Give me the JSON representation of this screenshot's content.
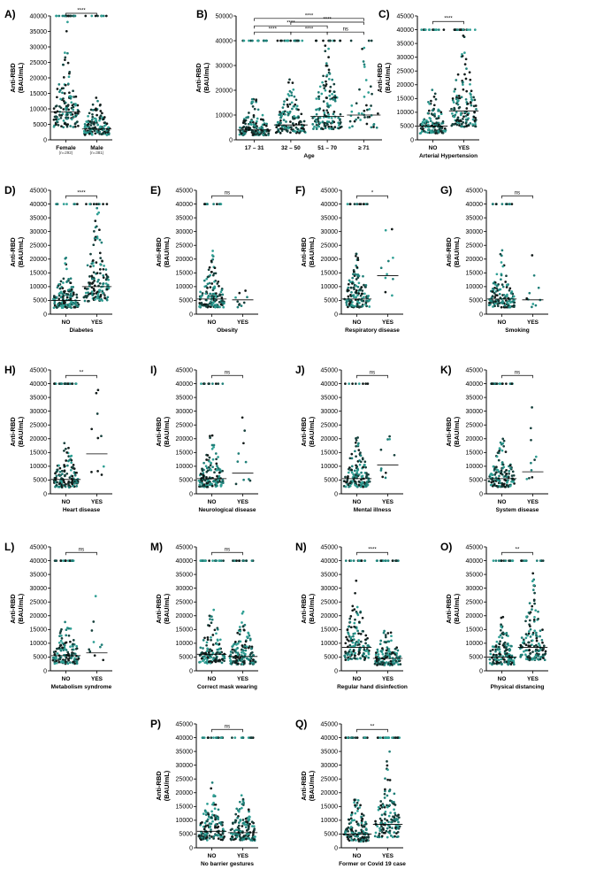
{
  "figure": {
    "y_axis_title_line1": "Anti-RBD",
    "y_axis_title_line2": "(BAU/mL)"
  },
  "colors": {
    "dot_dark": "#16403c",
    "dot_teal": "#1f7f78",
    "dot_light": "#2f9f94",
    "dot_black": "#111a19",
    "axis": "#000000"
  },
  "chart_data": [
    {
      "id": "A",
      "letter": "A)",
      "type": "scatter",
      "title": "",
      "xlabel": "",
      "ylabel": "Anti-RBD (BAU/mL)",
      "ylim": [
        0,
        40000
      ],
      "yticks": [
        0,
        5000,
        10000,
        15000,
        20000,
        25000,
        30000,
        35000,
        40000
      ],
      "categories": [
        "Female",
        "Male"
      ],
      "sublabels": [
        "(n=292)",
        "(n=381)"
      ],
      "medians": [
        9000,
        3500
      ],
      "comparisons": [
        {
          "from": 0,
          "to": 1,
          "label": "****"
        }
      ]
    },
    {
      "id": "B",
      "letter": "B)",
      "type": "scatter",
      "title": "",
      "xlabel": "Age",
      "ylabel": "Anti-RBD (BAU/mL)",
      "ylim": [
        0,
        50000
      ],
      "yticks": [
        0,
        10000,
        20000,
        30000,
        40000,
        50000
      ],
      "categories": [
        "17 – 31",
        "32 – 50",
        "51 – 70",
        "≥ 71"
      ],
      "medians": [
        4000,
        6000,
        9500,
        10000
      ],
      "comparisons": [
        {
          "from": 0,
          "to": 1,
          "label": "****"
        },
        {
          "from": 1,
          "to": 2,
          "label": "****"
        },
        {
          "from": 2,
          "to": 3,
          "label": "ns"
        },
        {
          "from": 0,
          "to": 2,
          "label": "****"
        },
        {
          "from": 1,
          "to": 3,
          "label": "****"
        },
        {
          "from": 0,
          "to": 3,
          "label": "****"
        }
      ]
    },
    {
      "id": "C",
      "letter": "C)",
      "type": "scatter",
      "title": "",
      "xlabel": "Arterial Hypertension",
      "ylabel": "Anti-RBD (BAU/mL)",
      "ylim": [
        0,
        45000
      ],
      "yticks": [
        0,
        5000,
        10000,
        15000,
        20000,
        25000,
        30000,
        35000,
        40000,
        45000
      ],
      "categories": [
        "NO",
        "YES"
      ],
      "medians": [
        5000,
        10500
      ],
      "comparisons": [
        {
          "from": 0,
          "to": 1,
          "label": "****"
        }
      ]
    },
    {
      "id": "D",
      "letter": "D)",
      "type": "scatter",
      "title": "",
      "xlabel": "Diabetes",
      "ylabel": "Anti-RBD (BAU/mL)",
      "ylim": [
        0,
        45000
      ],
      "yticks": [
        0,
        5000,
        10000,
        15000,
        20000,
        25000,
        30000,
        35000,
        40000,
        45000
      ],
      "categories": [
        "NO",
        "YES"
      ],
      "medians": [
        5000,
        10000
      ],
      "comparisons": [
        {
          "from": 0,
          "to": 1,
          "label": "****"
        }
      ]
    },
    {
      "id": "E",
      "letter": "E)",
      "type": "scatter",
      "title": "",
      "xlabel": "Obesity",
      "ylabel": "Anti-RBD (BAU/mL)",
      "ylim": [
        0,
        45000
      ],
      "yticks": [
        0,
        5000,
        10000,
        15000,
        20000,
        25000,
        30000,
        35000,
        40000,
        45000
      ],
      "categories": [
        "NO",
        "YES"
      ],
      "medians": [
        5500,
        5200
      ],
      "comparisons": [
        {
          "from": 0,
          "to": 1,
          "label": "ns"
        }
      ]
    },
    {
      "id": "F",
      "letter": "F)",
      "type": "scatter",
      "title": "",
      "xlabel": "Respiratory disease",
      "ylabel": "Anti-RBD (BAU/mL)",
      "ylim": [
        0,
        45000
      ],
      "yticks": [
        0,
        5000,
        10000,
        15000,
        20000,
        25000,
        30000,
        35000,
        40000,
        45000
      ],
      "categories": [
        "NO",
        "YES"
      ],
      "medians": [
        5500,
        14000
      ],
      "comparisons": [
        {
          "from": 0,
          "to": 1,
          "label": "*"
        }
      ]
    },
    {
      "id": "G",
      "letter": "G)",
      "type": "scatter",
      "title": "",
      "xlabel": "Smoking",
      "ylabel": "Anti-RBD (BAU/mL)",
      "ylim": [
        0,
        45000
      ],
      "yticks": [
        0,
        5000,
        10000,
        15000,
        20000,
        25000,
        30000,
        35000,
        40000,
        45000
      ],
      "categories": [
        "NO",
        "YES"
      ],
      "medians": [
        5500,
        5200
      ],
      "comparisons": [
        {
          "from": 0,
          "to": 1,
          "label": "ns"
        }
      ]
    },
    {
      "id": "H",
      "letter": "H)",
      "type": "scatter",
      "title": "",
      "xlabel": "Heart disease",
      "ylabel": "Anti-RBD (BAU/mL)",
      "ylim": [
        0,
        45000
      ],
      "yticks": [
        0,
        5000,
        10000,
        15000,
        20000,
        25000,
        30000,
        35000,
        40000,
        45000
      ],
      "categories": [
        "NO",
        "YES"
      ],
      "medians": [
        5200,
        14500
      ],
      "comparisons": [
        {
          "from": 0,
          "to": 1,
          "label": "**"
        }
      ]
    },
    {
      "id": "I",
      "letter": "I)",
      "type": "scatter",
      "title": "",
      "xlabel": "Neurological disease",
      "ylabel": "Anti-RBD (BAU/mL)",
      "ylim": [
        0,
        45000
      ],
      "yticks": [
        0,
        5000,
        10000,
        15000,
        20000,
        25000,
        30000,
        35000,
        40000,
        45000
      ],
      "categories": [
        "NO",
        "YES"
      ],
      "medians": [
        5500,
        7500
      ],
      "comparisons": [
        {
          "from": 0,
          "to": 1,
          "label": "ns"
        }
      ]
    },
    {
      "id": "J",
      "letter": "J)",
      "type": "scatter",
      "title": "",
      "xlabel": "Mental illness",
      "ylabel": "Anti-RBD (BAU/mL)",
      "ylim": [
        0,
        45000
      ],
      "yticks": [
        0,
        5000,
        10000,
        15000,
        20000,
        25000,
        30000,
        35000,
        40000,
        45000
      ],
      "categories": [
        "NO",
        "YES"
      ],
      "medians": [
        5500,
        10500
      ],
      "comparisons": [
        {
          "from": 0,
          "to": 1,
          "label": "ns"
        }
      ]
    },
    {
      "id": "K",
      "letter": "K)",
      "type": "scatter",
      "title": "",
      "xlabel": "System disease",
      "ylabel": "Anti-RBD (BAU/mL)",
      "ylim": [
        0,
        45000
      ],
      "yticks": [
        0,
        5000,
        10000,
        15000,
        20000,
        25000,
        30000,
        35000,
        40000,
        45000
      ],
      "categories": [
        "NO",
        "YES"
      ],
      "medians": [
        5500,
        8000
      ],
      "comparisons": [
        {
          "from": 0,
          "to": 1,
          "label": "ns"
        }
      ]
    },
    {
      "id": "L",
      "letter": "L)",
      "type": "scatter",
      "title": "",
      "xlabel": "Metabolism syndrome",
      "ylabel": "Anti-RBD (BAU/mL)",
      "ylim": [
        0,
        45000
      ],
      "yticks": [
        0,
        5000,
        10000,
        15000,
        20000,
        25000,
        30000,
        35000,
        40000,
        45000
      ],
      "categories": [
        "NO",
        "YES"
      ],
      "medians": [
        5500,
        6500
      ],
      "comparisons": [
        {
          "from": 0,
          "to": 1,
          "label": "ns"
        }
      ]
    },
    {
      "id": "M",
      "letter": "M)",
      "type": "scatter",
      "title": "",
      "xlabel": "Correct mask wearing",
      "ylabel": "Anti-RBD (BAU/mL)",
      "ylim": [
        0,
        45000
      ],
      "yticks": [
        0,
        5000,
        10000,
        15000,
        20000,
        25000,
        30000,
        35000,
        40000,
        45000
      ],
      "categories": [
        "NO",
        "YES"
      ],
      "medians": [
        6000,
        5200
      ],
      "comparisons": [
        {
          "from": 0,
          "to": 1,
          "label": "ns"
        }
      ]
    },
    {
      "id": "N",
      "letter": "N)",
      "type": "scatter",
      "title": "",
      "xlabel": "Regular hand disinfection",
      "ylabel": "Anti-RBD (BAU/mL)",
      "ylim": [
        0,
        45000
      ],
      "yticks": [
        0,
        5000,
        10000,
        15000,
        20000,
        25000,
        30000,
        35000,
        40000,
        45000
      ],
      "categories": [
        "NO",
        "YES"
      ],
      "medians": [
        8500,
        4500
      ],
      "comparisons": [
        {
          "from": 0,
          "to": 1,
          "label": "****"
        }
      ]
    },
    {
      "id": "O",
      "letter": "O)",
      "type": "scatter",
      "title": "",
      "xlabel": "Physical distancing",
      "ylabel": "Anti-RBD (BAU/mL)",
      "ylim": [
        0,
        45000
      ],
      "yticks": [
        0,
        5000,
        10000,
        15000,
        20000,
        25000,
        30000,
        35000,
        40000,
        45000
      ],
      "categories": [
        "NO",
        "YES"
      ],
      "medians": [
        5000,
        8500
      ],
      "comparisons": [
        {
          "from": 0,
          "to": 1,
          "label": "**"
        }
      ]
    },
    {
      "id": "P",
      "letter": "P)",
      "type": "scatter",
      "title": "",
      "xlabel": "No barrier gestures",
      "ylabel": "Anti-RBD (BAU/mL)",
      "ylim": [
        0,
        45000
      ],
      "yticks": [
        0,
        5000,
        10000,
        15000,
        20000,
        25000,
        30000,
        35000,
        40000,
        45000
      ],
      "categories": [
        "NO",
        "YES"
      ],
      "medians": [
        6000,
        5500
      ],
      "comparisons": [
        {
          "from": 0,
          "to": 1,
          "label": "ns"
        }
      ]
    },
    {
      "id": "Q",
      "letter": "Q)",
      "type": "scatter",
      "title": "",
      "xlabel": "Former or Covid 19 case",
      "ylabel": "Anti-RBD (BAU/mL)",
      "ylim": [
        0,
        45000
      ],
      "yticks": [
        0,
        5000,
        10000,
        15000,
        20000,
        25000,
        30000,
        35000,
        40000,
        45000
      ],
      "categories": [
        "NO",
        "YES"
      ],
      "medians": [
        5000,
        8500
      ],
      "comparisons": [
        {
          "from": 0,
          "to": 1,
          "label": "**"
        }
      ]
    }
  ]
}
